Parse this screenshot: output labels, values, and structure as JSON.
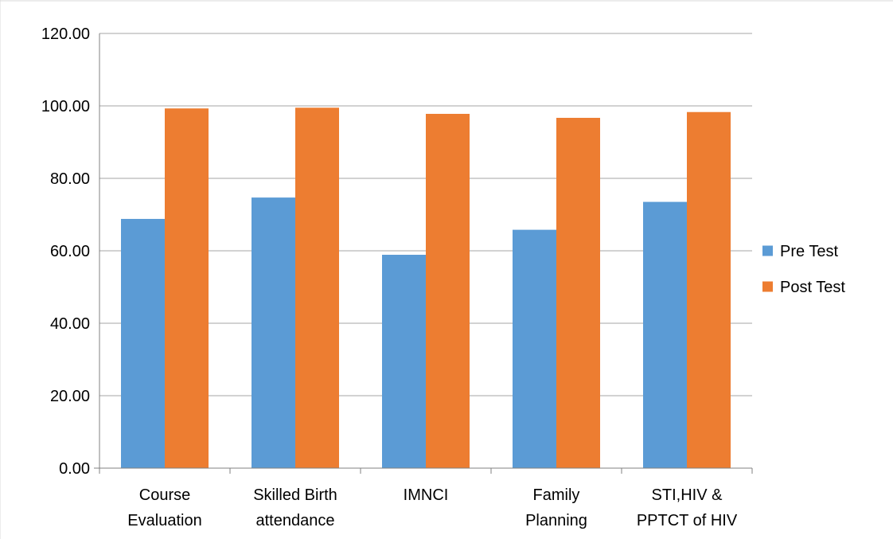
{
  "chart_data": {
    "type": "bar",
    "title": "",
    "xlabel": "",
    "ylabel": "",
    "ylim": [
      0,
      120
    ],
    "yticks": [
      "0.00",
      "20.00",
      "40.00",
      "60.00",
      "80.00",
      "100.00",
      "120.00"
    ],
    "grid": true,
    "legend_position": "right",
    "categories": [
      [
        "Course",
        "Evaluation"
      ],
      [
        "Skilled Birth",
        "attendance"
      ],
      [
        "IMNCI"
      ],
      [
        "Family",
        "Planning"
      ],
      [
        "STI,HIV &",
        "PPTCT of HIV"
      ]
    ],
    "series": [
      {
        "name": "Pre Test",
        "color": "#5B9BD5",
        "values": [
          68.8,
          74.7,
          58.9,
          65.8,
          73.5
        ]
      },
      {
        "name": "Post Test",
        "color": "#ED7D31",
        "values": [
          99.3,
          99.5,
          97.8,
          96.7,
          98.3
        ]
      }
    ]
  }
}
